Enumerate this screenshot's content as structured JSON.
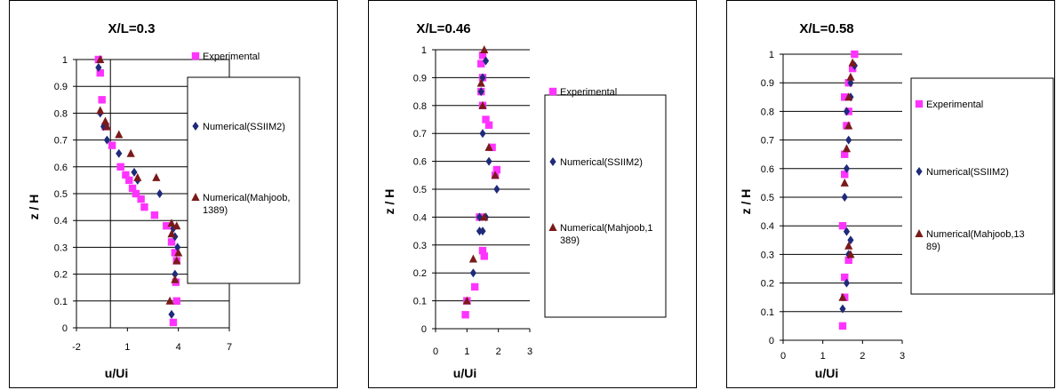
{
  "chart_data": [
    {
      "type": "scatter",
      "title": "X/L=0.3",
      "xlabel": "u/Ui",
      "ylabel": "z / H",
      "xlim": [
        -2,
        7
      ],
      "ylim": [
        0,
        1
      ],
      "xticks": [
        "-2",
        "1",
        "4",
        "7"
      ],
      "yticks": [
        "0",
        "0.1",
        "0.2",
        "0.3",
        "0.4",
        "0.5",
        "0.6",
        "0.7",
        "0.8",
        "0.9",
        "1"
      ],
      "grid": true,
      "legend_position": "right",
      "series": [
        {
          "name": "Experimental",
          "marker": "square",
          "color": "#ff33ff",
          "x": [
            3.7,
            3.9,
            3.85,
            3.9,
            3.8,
            3.6,
            3.3,
            2.6,
            2.0,
            1.8,
            1.5,
            1.3,
            1.1,
            0.9,
            0.6,
            0.1,
            -0.3,
            -0.5,
            -0.6,
            -0.7
          ],
          "y": [
            0.02,
            0.1,
            0.17,
            0.25,
            0.28,
            0.32,
            0.38,
            0.42,
            0.45,
            0.48,
            0.5,
            0.52,
            0.55,
            0.57,
            0.6,
            0.68,
            0.75,
            0.85,
            0.95,
            1.0
          ]
        },
        {
          "name": "Numerical(SSIIM2)",
          "marker": "diamond",
          "color": "#1f2a7a",
          "x": [
            3.6,
            3.8,
            3.95,
            3.8,
            3.7,
            2.9,
            1.6,
            1.4,
            0.5,
            -0.2,
            -0.4,
            -0.6,
            -0.7
          ],
          "y": [
            0.05,
            0.2,
            0.3,
            0.34,
            0.37,
            0.5,
            0.55,
            0.58,
            0.65,
            0.7,
            0.75,
            0.8,
            0.97
          ]
        },
        {
          "name": "Numerical(Mahjoob, 1389)",
          "marker": "triangle",
          "color": "#7a1a1a",
          "x": [
            3.5,
            3.8,
            3.9,
            4.0,
            3.6,
            3.9,
            3.6,
            2.7,
            1.6,
            1.2,
            0.5,
            -0.2,
            -0.3,
            -0.6,
            -0.6
          ],
          "y": [
            0.1,
            0.18,
            0.25,
            0.28,
            0.35,
            0.38,
            0.39,
            0.56,
            0.56,
            0.65,
            0.72,
            0.75,
            0.77,
            0.81,
            1.0
          ]
        }
      ]
    },
    {
      "type": "scatter",
      "title": "X/L=0.46",
      "xlabel": "u/Ui",
      "ylabel": "z / H",
      "xlim": [
        0,
        3
      ],
      "ylim": [
        0,
        1
      ],
      "xticks": [
        "0",
        "1",
        "2",
        "3"
      ],
      "yticks": [
        "0",
        "0.1",
        "0.2",
        "0.3",
        "0.4",
        "0.5",
        "0.6",
        "0.7",
        "0.8",
        "0.9",
        "1"
      ],
      "grid": true,
      "legend_position": "right",
      "series": [
        {
          "name": "Experimental",
          "marker": "square",
          "color": "#ff33ff",
          "x": [
            0.95,
            1.0,
            1.25,
            1.55,
            1.5,
            1.4,
            1.9,
            1.95,
            1.8,
            1.7,
            1.6,
            1.5,
            1.45,
            1.5,
            1.45,
            1.5
          ],
          "y": [
            0.05,
            0.1,
            0.15,
            0.26,
            0.28,
            0.4,
            0.55,
            0.57,
            0.65,
            0.73,
            0.75,
            0.8,
            0.85,
            0.9,
            0.95,
            0.98
          ]
        },
        {
          "name": "Numerical(SSIIM2)",
          "marker": "diamond",
          "color": "#1f2a7a",
          "x": [
            1.2,
            1.5,
            1.4,
            1.6,
            1.4,
            1.95,
            1.7,
            1.5,
            1.45,
            1.5,
            1.6
          ],
          "y": [
            0.2,
            0.35,
            0.35,
            0.4,
            0.4,
            0.5,
            0.6,
            0.7,
            0.85,
            0.9,
            0.96
          ]
        },
        {
          "name": "Numerical(Mahjoob,1389)",
          "marker": "triangle",
          "color": "#7a1a1a",
          "x": [
            1.0,
            1.2,
            1.55,
            1.9,
            1.7,
            1.5,
            1.45,
            1.55
          ],
          "y": [
            0.1,
            0.25,
            0.4,
            0.55,
            0.65,
            0.8,
            0.88,
            1.0
          ]
        }
      ]
    },
    {
      "type": "scatter",
      "title": "X/L=0.58",
      "xlabel": "u/Ui",
      "ylabel": "z / H",
      "xlim": [
        0,
        3
      ],
      "ylim": [
        0,
        1
      ],
      "xticks": [
        "0",
        "1",
        "2",
        "3"
      ],
      "yticks": [
        "0",
        "0.1",
        "0.2",
        "0.3",
        "0.4",
        "0.5",
        "0.6",
        "0.7",
        "0.8",
        "0.9",
        "1"
      ],
      "grid": true,
      "legend_position": "right",
      "series": [
        {
          "name": "Experimental",
          "marker": "square",
          "color": "#ff33ff",
          "x": [
            1.5,
            1.55,
            1.55,
            1.65,
            1.5,
            1.55,
            1.55,
            1.6,
            1.65,
            1.55,
            1.65,
            1.75,
            1.8
          ],
          "y": [
            0.05,
            0.15,
            0.22,
            0.28,
            0.4,
            0.58,
            0.65,
            0.75,
            0.8,
            0.85,
            0.9,
            0.95,
            1.0
          ]
        },
        {
          "name": "Numerical(SSIIM2)",
          "marker": "diamond",
          "color": "#1f2a7a",
          "x": [
            1.5,
            1.6,
            1.65,
            1.7,
            1.6,
            1.55,
            1.6,
            1.65,
            1.6,
            1.7,
            1.7,
            1.8
          ],
          "y": [
            0.11,
            0.2,
            0.3,
            0.35,
            0.38,
            0.5,
            0.6,
            0.7,
            0.8,
            0.85,
            0.9,
            0.96
          ]
        },
        {
          "name": "Numerical(Mahjoob,1389)",
          "marker": "triangle",
          "color": "#7a1a1a",
          "x": [
            1.5,
            1.7,
            1.65,
            1.55,
            1.6,
            1.65,
            1.65,
            1.7,
            1.75
          ],
          "y": [
            0.15,
            0.3,
            0.33,
            0.55,
            0.67,
            0.75,
            0.85,
            0.92,
            0.97
          ]
        }
      ]
    }
  ]
}
